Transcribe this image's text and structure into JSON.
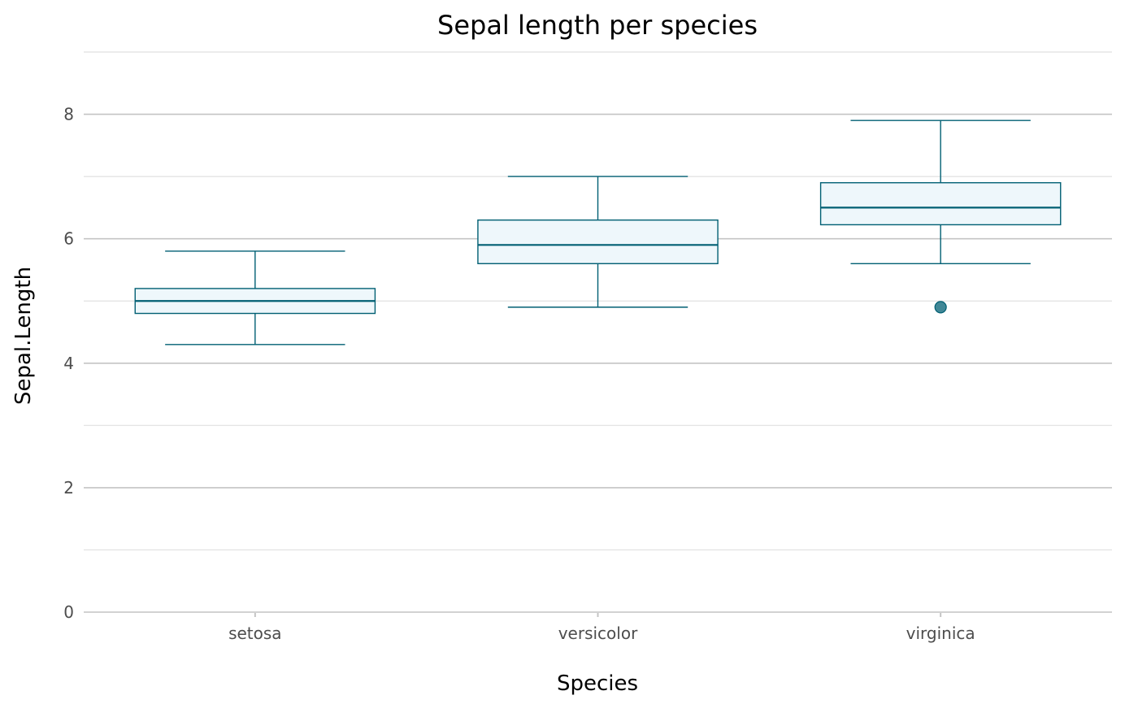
{
  "chart_data": {
    "type": "boxplot",
    "title": "Sepal length per species",
    "xlabel": "Species",
    "ylabel": "Sepal.Length",
    "ylim": [
      0,
      9
    ],
    "yticks": [
      0,
      2,
      4,
      6,
      8
    ],
    "grid": true,
    "categories": [
      "setosa",
      "versicolor",
      "virginica"
    ],
    "boxes": [
      {
        "category": "setosa",
        "whisker_low": 4.3,
        "q1": 4.8,
        "median": 5.0,
        "q3": 5.2,
        "whisker_high": 5.8,
        "outliers": []
      },
      {
        "category": "versicolor",
        "whisker_low": 4.9,
        "q1": 5.6,
        "median": 5.9,
        "q3": 6.3,
        "whisker_high": 7.0,
        "outliers": []
      },
      {
        "category": "virginica",
        "whisker_low": 5.6,
        "q1": 6.225,
        "median": 6.5,
        "q3": 6.9,
        "whisker_high": 7.9,
        "outliers": [
          4.9
        ]
      }
    ],
    "colors": {
      "box_stroke": "#005f73",
      "box_fill": "#eef7fb",
      "outlier": "#005f73",
      "grid_major": "#c4c4c4",
      "grid_minor": "#e0e0e0",
      "tick_label": "#4d4d4d"
    }
  }
}
